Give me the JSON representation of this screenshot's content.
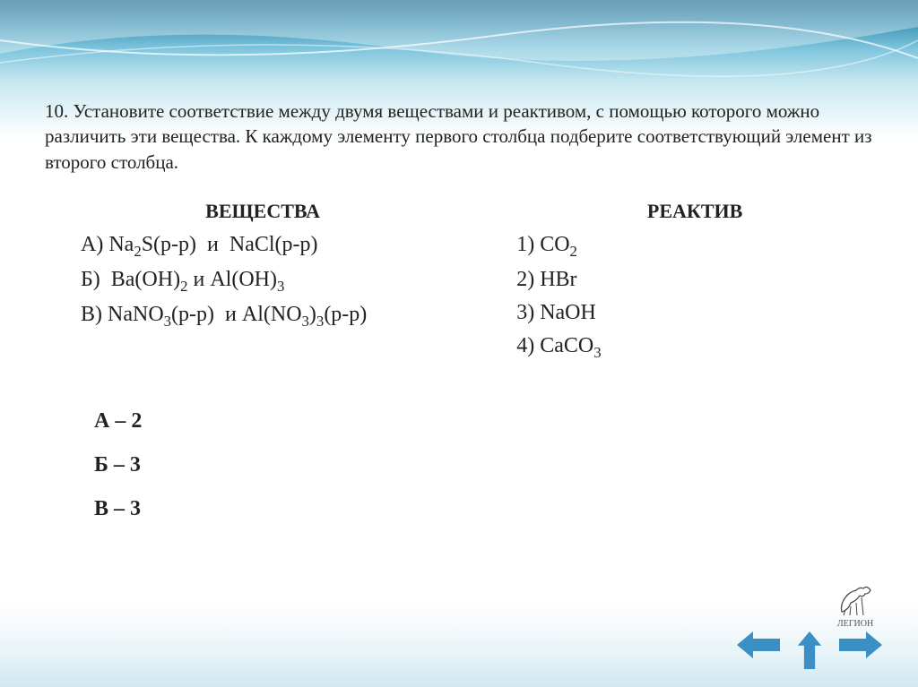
{
  "question": {
    "number": "10.",
    "text": "Установите соответствие между двумя веществами и реактивом, с помощью которого можно различить эти вещества. К каждому элементу первого столбца подберите соответствующий элемент из второго столбца."
  },
  "left_header": "ВЕЩЕСТВА",
  "right_header": "РЕАКТИВ",
  "substances": [
    {
      "label": "А)",
      "html": "Na<sub>2</sub>S(р-р)  и  NaCl(р-р)"
    },
    {
      "label": "Б)",
      "html": " Ba(OH)<sub>2</sub> и Al(OH)<sub>3</sub>"
    },
    {
      "label": "В)",
      "html": "NaNO<sub>3</sub>(р-р)  и Al(NO<sub>3</sub>)<sub>3</sub>(р-р)"
    }
  ],
  "reagents": [
    {
      "label": "1)",
      "html": "CO<sub>2</sub>"
    },
    {
      "label": "2)",
      "html": "HBr"
    },
    {
      "label": "3)",
      "html": "NaOH"
    },
    {
      "label": "4)",
      "html": "CaCO<sub>3</sub>"
    }
  ],
  "answers": [
    "А – 2",
    "Б – 3",
    "В – 3"
  ],
  "logo_text": "ЛЕГИОН",
  "colors": {
    "arrow": "#3a8fc4",
    "text": "#222222"
  }
}
